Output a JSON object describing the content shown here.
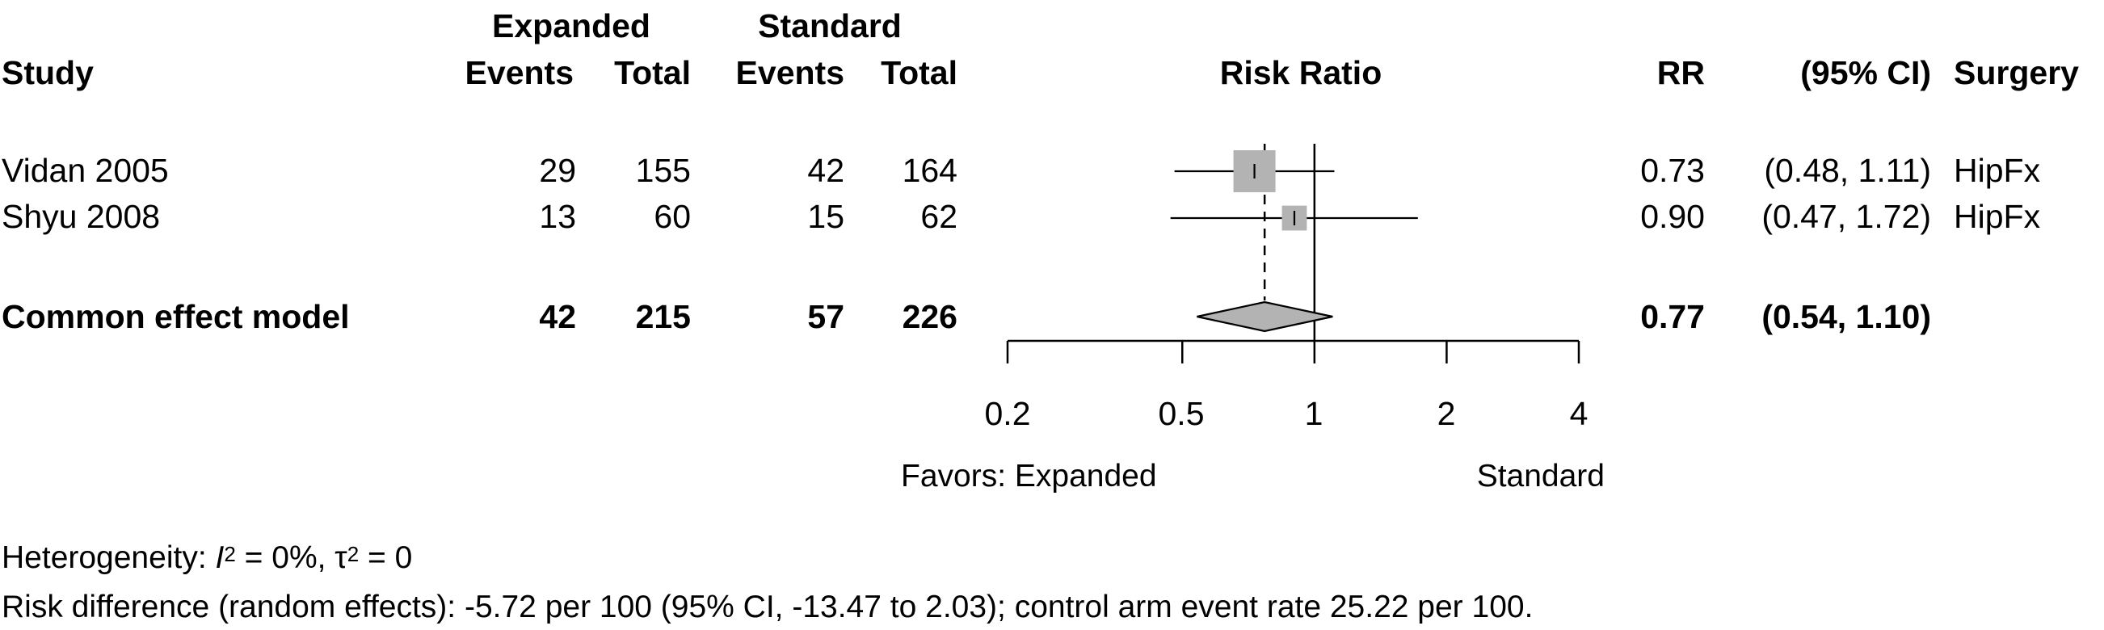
{
  "header": {
    "group_expanded": "Expanded",
    "group_standard": "Standard",
    "col_study": "Study",
    "col_events_e": "Events",
    "col_total_e": "Total",
    "col_events_s": "Events",
    "col_total_s": "Total",
    "col_plot": "Risk Ratio",
    "col_rr": "RR",
    "col_ci": "(95% CI)",
    "col_surgery": "Surgery"
  },
  "studies": [
    {
      "name": "Vidan 2005",
      "events_e": "29",
      "total_e": "155",
      "events_s": "42",
      "total_s": "164",
      "rr": "0.73",
      "ci": "(0.48, 1.11)",
      "surgery": "HipFx"
    },
    {
      "name": "Shyu 2008",
      "events_e": "13",
      "total_e": "60",
      "events_s": "15",
      "total_s": "62",
      "rr": "0.90",
      "ci": "(0.47, 1.72)",
      "surgery": "HipFx"
    }
  ],
  "pooled": {
    "name": "Common effect model",
    "events_e": "42",
    "total_e": "215",
    "events_s": "57",
    "total_s": "226",
    "rr": "0.77",
    "ci": "(0.54, 1.10)"
  },
  "axis": {
    "ticks": [
      "0.2",
      "0.5",
      "1",
      "2",
      "4"
    ],
    "favors_left": "Favors: Expanded",
    "favors_right": "Standard"
  },
  "footer": {
    "het_prefix": "Heterogeneity: ",
    "het_i": "I",
    "het_i_sup": "2",
    "het_mid": " = 0%, τ",
    "het_tau_sup": "2",
    "het_end": " = 0",
    "risk_difference": "Risk difference (random effects): -5.72 per 100 (95% CI, -13.47 to 2.03); control arm event rate 25.22 per 100."
  },
  "chart_data": {
    "type": "forest",
    "scale": "log",
    "xlim": [
      0.2,
      4
    ],
    "ticks": [
      0.2,
      0.5,
      1,
      2,
      4
    ],
    "null_value": 1,
    "studies": [
      {
        "name": "Vidan 2005",
        "rr": 0.73,
        "lower": 0.48,
        "upper": 1.11,
        "weight": 0.74
      },
      {
        "name": "Shyu 2008",
        "rr": 0.9,
        "lower": 0.47,
        "upper": 1.72,
        "weight": 0.26
      }
    ],
    "pooled": {
      "name": "Common effect model",
      "rr": 0.77,
      "lower": 0.54,
      "upper": 1.1
    },
    "colors": {
      "box": "#b3b3b3",
      "diamond": "#b3b3b3",
      "line": "#000000"
    }
  }
}
